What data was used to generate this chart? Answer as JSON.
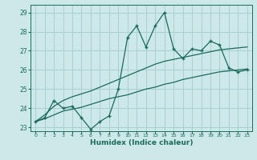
{
  "xlabel": "Humidex (Indice chaleur)",
  "xlim": [
    -0.5,
    23.5
  ],
  "ylim": [
    22.8,
    29.4
  ],
  "yticks": [
    23,
    24,
    25,
    26,
    27,
    28,
    29
  ],
  "xticks": [
    0,
    1,
    2,
    3,
    4,
    5,
    6,
    7,
    8,
    9,
    10,
    11,
    12,
    13,
    14,
    15,
    16,
    17,
    18,
    19,
    20,
    21,
    22,
    23
  ],
  "bg_color": "#cce8e8",
  "grid_color": "#aacece",
  "line_color": "#1a6b5a",
  "main_line_y": [
    23.3,
    23.5,
    24.4,
    24.0,
    24.1,
    23.5,
    22.9,
    23.3,
    23.6,
    25.0,
    27.7,
    28.3,
    27.2,
    28.3,
    29.0,
    27.1,
    26.6,
    27.1,
    27.0,
    27.5,
    27.3,
    26.1,
    25.9,
    26.0
  ],
  "trend1_y": [
    23.3,
    23.65,
    24.1,
    24.4,
    24.6,
    24.75,
    24.9,
    25.1,
    25.3,
    25.5,
    25.7,
    25.9,
    26.1,
    26.3,
    26.45,
    26.55,
    26.65,
    26.75,
    26.85,
    26.95,
    27.05,
    27.1,
    27.15,
    27.2
  ],
  "trend2_y": [
    23.3,
    23.45,
    23.65,
    23.85,
    23.95,
    24.05,
    24.2,
    24.35,
    24.5,
    24.6,
    24.7,
    24.85,
    25.0,
    25.1,
    25.25,
    25.35,
    25.5,
    25.6,
    25.7,
    25.8,
    25.9,
    25.95,
    26.0,
    26.05
  ]
}
